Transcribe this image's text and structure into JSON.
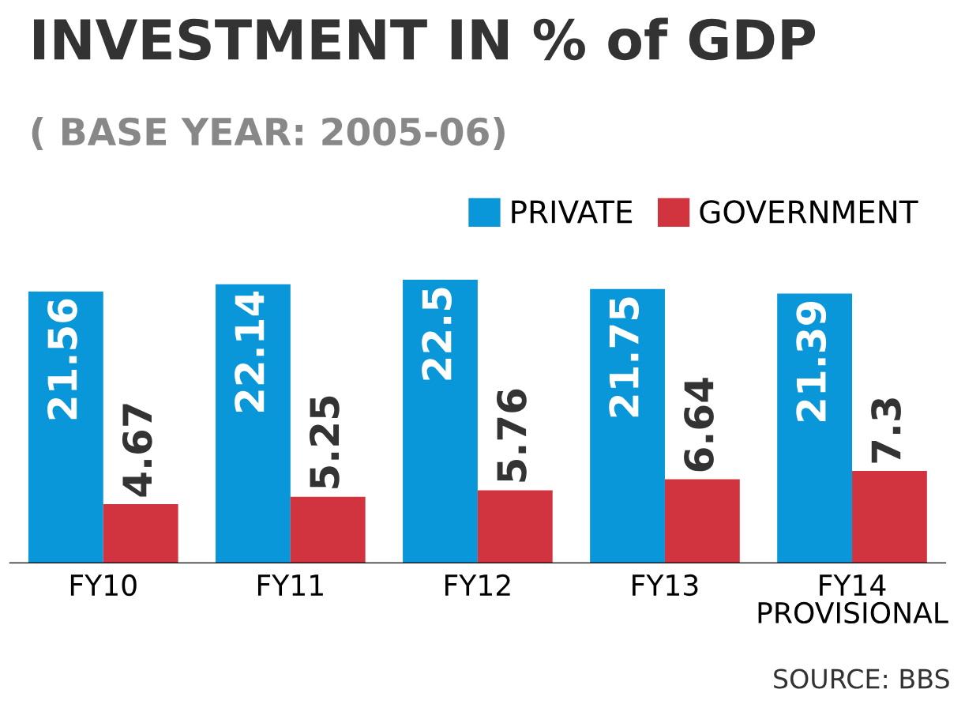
{
  "chart_data": {
    "type": "bar",
    "title": "INVESTMENT IN % of GDP",
    "subtitle": "( BASE YEAR: 2005-06)",
    "categories": [
      "FY10",
      "FY11",
      "FY12",
      "FY13",
      "FY14\nPROVISIONAL"
    ],
    "series": [
      {
        "name": "PRIVATE",
        "color": "#0a97d9",
        "values": [
          21.56,
          22.14,
          22.5,
          21.75,
          21.39
        ]
      },
      {
        "name": "GOVERNMENT",
        "color": "#d2343f",
        "values": [
          4.67,
          5.25,
          5.76,
          6.64,
          7.3
        ]
      }
    ],
    "data_labels": true,
    "legend": "top right",
    "grid": false,
    "annotations": [
      "SOURCE: BBS"
    ]
  }
}
